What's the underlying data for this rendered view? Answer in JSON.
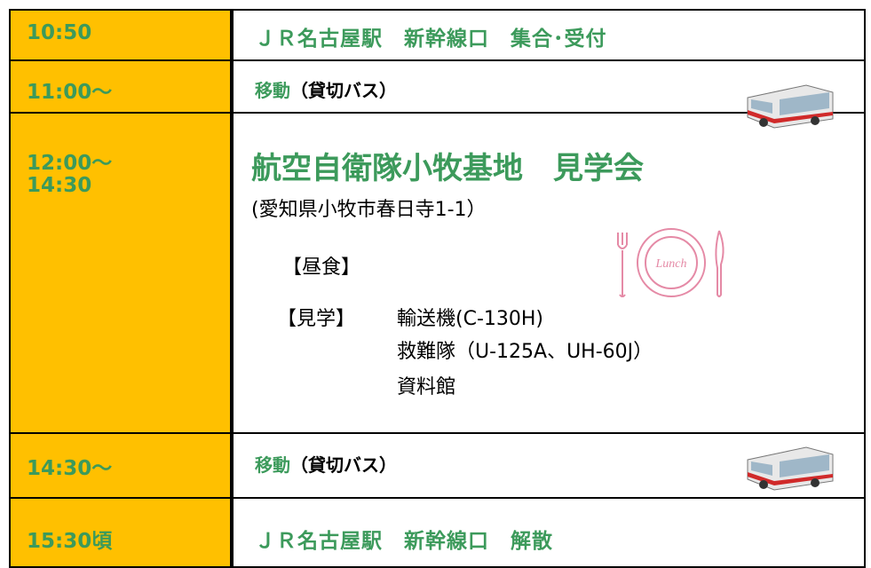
{
  "schedule": {
    "rows": [
      {
        "time": [
          "10:50"
        ],
        "content": "ＪＲ名古屋駅　新幹線口　集合･受付"
      },
      {
        "time": [
          "11:00～"
        ],
        "content": "移動",
        "note": "（貸切バス）"
      },
      {
        "time": [
          "12:00～",
          "14:30"
        ],
        "title": "航空自衛隊小牧基地　見学会",
        "address": "(愛知県小牧市春日寺1-1）",
        "lunch": "【昼食】",
        "lunch_icon": "Lunch",
        "tour_label": "【見学】",
        "tour_items": [
          "輸送機(C-130H)",
          "救難隊（U-125A、UH-60J）",
          "資料館"
        ]
      },
      {
        "time": [
          "14:30～"
        ],
        "content": "移動",
        "note": "（貸切バス）"
      },
      {
        "time": [
          "15:30頃"
        ],
        "content": "ＪＲ名古屋駅　新幹線口　解散"
      }
    ]
  }
}
